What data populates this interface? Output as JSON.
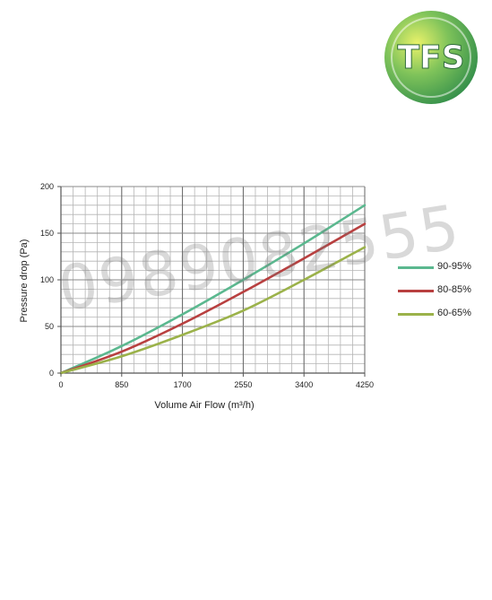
{
  "logo": {
    "text": "TFS"
  },
  "watermark": "0989082555",
  "chart_data": {
    "type": "line",
    "xlabel": "Volume Air Flow (m³/h)",
    "ylabel": "Pressure drop (Pa)",
    "xlim": [
      0,
      4250
    ],
    "ylim": [
      0,
      200
    ],
    "xticks": [
      0,
      850,
      1700,
      2550,
      3400,
      4250
    ],
    "yticks": [
      0,
      50,
      100,
      150,
      200
    ],
    "grid": true,
    "legend_position": "right",
    "series": [
      {
        "name": "90-95%",
        "color": "#5bb88f",
        "x": [
          0,
          850,
          1700,
          2550,
          3400,
          4250
        ],
        "y": [
          0,
          29,
          63,
          100,
          139,
          180
        ]
      },
      {
        "name": "80-85%",
        "color": "#b84040",
        "x": [
          0,
          850,
          1700,
          2550,
          3400,
          4250
        ],
        "y": [
          0,
          23,
          53,
          87,
          123,
          160
        ]
      },
      {
        "name": "60-65%",
        "color": "#9bb24a",
        "x": [
          0,
          850,
          1700,
          2550,
          3400,
          4250
        ],
        "y": [
          0,
          18,
          41,
          67,
          100,
          135
        ]
      }
    ]
  }
}
